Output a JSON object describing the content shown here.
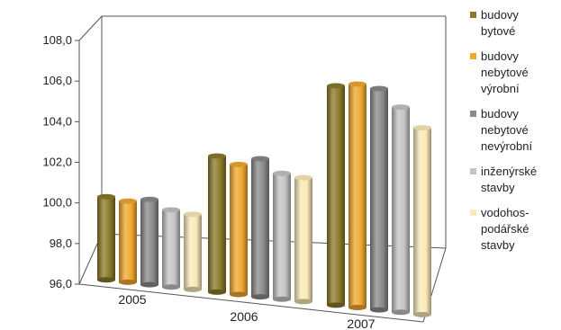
{
  "chart_data": {
    "type": "bar",
    "title": "",
    "xlabel": "",
    "ylabel": "",
    "categories": [
      "2005",
      "2006",
      "2007"
    ],
    "ylim": [
      96.0,
      108.0
    ],
    "yticks": [
      "96,0",
      "98,0",
      "100,0",
      "102,0",
      "104,0",
      "106,0",
      "108,0"
    ],
    "grid": false,
    "legend_position": "right",
    "series": [
      {
        "name": "budovy\nbytové",
        "color": "#8a7a2a",
        "values": [
          100.1,
          102.7,
          106.8
        ]
      },
      {
        "name": "budovy\nnebytové\nvýrobní",
        "color": "#f0a830",
        "values": [
          100.0,
          102.4,
          107.0
        ]
      },
      {
        "name": "budovy\nnebytové\nnevýrobní",
        "color": "#8a8a8a",
        "values": [
          100.2,
          102.8,
          106.9
        ]
      },
      {
        "name": "inženýrské\nstavby",
        "color": "#c4c4c4",
        "values": [
          99.8,
          102.2,
          106.1
        ]
      },
      {
        "name": "vodohos-\npodářské\nstavby",
        "color": "#faeab8",
        "values": [
          99.7,
          102.1,
          105.2
        ]
      }
    ]
  }
}
